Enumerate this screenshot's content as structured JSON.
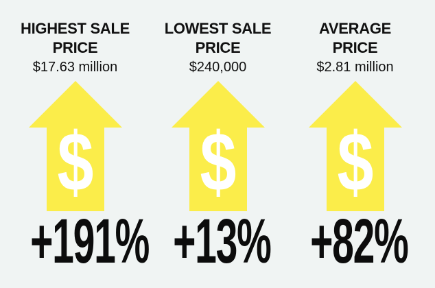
{
  "stats": [
    {
      "label_line1": "HIGHEST SALE",
      "label_line2": "PRICE",
      "value": "$17.63 million",
      "change": "+191%",
      "icon": "dollar-up-arrow-icon"
    },
    {
      "label_line1": "LOWEST SALE",
      "label_line2": "PRICE",
      "value": "$240,000",
      "change": "+13%",
      "icon": "dollar-up-arrow-icon"
    },
    {
      "label_line1": "AVERAGE",
      "label_line2": "PRICE",
      "value": "$2.81 million",
      "change": "+82%",
      "icon": "dollar-up-arrow-icon"
    }
  ],
  "colors": {
    "background": "#f0f4f3",
    "arrow": "#fbed4a",
    "dollar": "#ffffff",
    "text": "#111111"
  }
}
